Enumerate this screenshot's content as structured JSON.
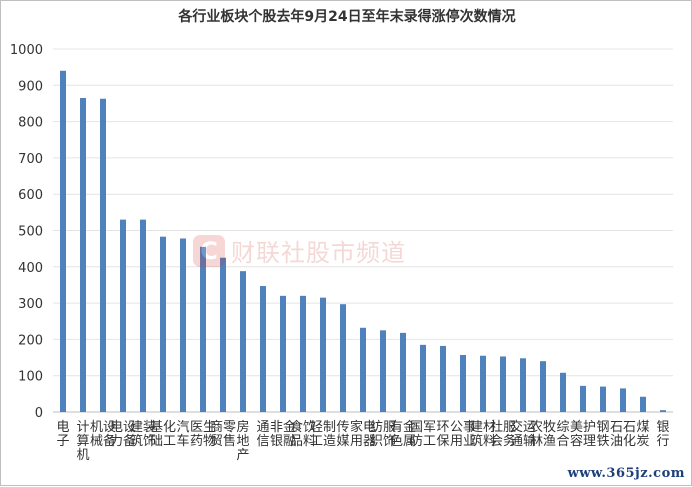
{
  "chart_data": {
    "type": "bar",
    "title": "各行业板块个股去年9月24日至年末录得涨停次数情况",
    "categories": [
      "电子",
      "计算机",
      "机械设备",
      "电力设备",
      "建筑装饰",
      "基础化工",
      "汽车",
      "医药生物",
      "商贸零售",
      "房地产",
      "通信",
      "非银金融",
      "食品饮料",
      "轻工制造",
      "传媒",
      "家用电器",
      "纺织服饰",
      "有色金属",
      "国防军工",
      "环保",
      "公用事业",
      "建筑材料",
      "社会服务",
      "交通运输",
      "农林牧渔",
      "综合",
      "美容护理",
      "钢铁",
      "石油石化",
      "煤炭",
      "银行"
    ],
    "values": [
      940,
      865,
      863,
      530,
      530,
      483,
      478,
      455,
      425,
      388,
      347,
      320,
      320,
      315,
      297,
      232,
      225,
      218,
      185,
      182,
      157,
      155,
      153,
      148,
      140,
      108,
      72,
      70,
      65,
      42,
      5
    ],
    "ylim": [
      0,
      1000
    ],
    "yticks": [
      0,
      100,
      200,
      300,
      400,
      500,
      600,
      700,
      800,
      900,
      1000
    ],
    "grid": true,
    "bar_color": "#4f81bd"
  },
  "watermark": {
    "logo": "C",
    "text": "财联社股市频道"
  },
  "site_mark": "www.365jz.com"
}
